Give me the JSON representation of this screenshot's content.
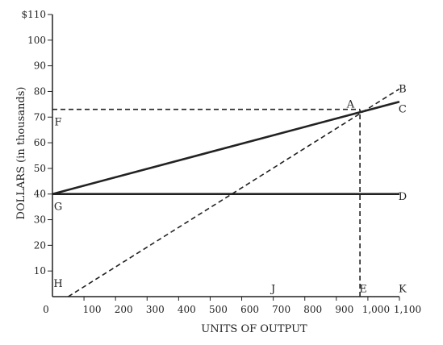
{
  "chart_data": {
    "type": "line",
    "title": "",
    "xlabel": "UNITS OF OUTPUT",
    "ylabel": "DOLLARS (in thousands)",
    "xlim": [
      0,
      1100
    ],
    "ylim": [
      0,
      110
    ],
    "x_ticks": [
      "0",
      "100",
      "200",
      "300",
      "400",
      "500",
      "600",
      "700",
      "800",
      "900",
      "1,000",
      "1,100"
    ],
    "y_ticks": [
      "",
      "10",
      "20",
      "30",
      "40",
      "50",
      "60",
      "70",
      "80",
      "90",
      "100",
      "$110"
    ],
    "series": [
      {
        "style": "solid",
        "points": [
          [
            0,
            40
          ],
          [
            1100,
            76
          ]
        ]
      },
      {
        "style": "solid",
        "points": [
          [
            0,
            40
          ],
          [
            1100,
            40
          ]
        ]
      },
      {
        "style": "dashed",
        "points": [
          [
            50,
            0
          ],
          [
            1100,
            81
          ]
        ]
      },
      {
        "style": "dashed",
        "points": [
          [
            0,
            73
          ],
          [
            975,
            73
          ]
        ]
      },
      {
        "style": "dashed",
        "points": [
          [
            975,
            0
          ],
          [
            975,
            73
          ]
        ]
      }
    ],
    "point_labels": [
      {
        "text": "A",
        "x": 945,
        "y": 75
      },
      {
        "text": "B",
        "x": 1110,
        "y": 81
      },
      {
        "text": "C",
        "x": 1110,
        "y": 73
      },
      {
        "text": "D",
        "x": 1110,
        "y": 39
      },
      {
        "text": "E",
        "x": 985,
        "y": 3
      },
      {
        "text": "F",
        "x": 18,
        "y": 68
      },
      {
        "text": "G",
        "x": 18,
        "y": 35
      },
      {
        "text": "H",
        "x": 18,
        "y": 5
      },
      {
        "text": "J",
        "x": 700,
        "y": 3
      },
      {
        "text": "K",
        "x": 1110,
        "y": 3
      }
    ],
    "colors": {
      "line": "#222222",
      "axis": "#222222"
    },
    "grid": false
  }
}
